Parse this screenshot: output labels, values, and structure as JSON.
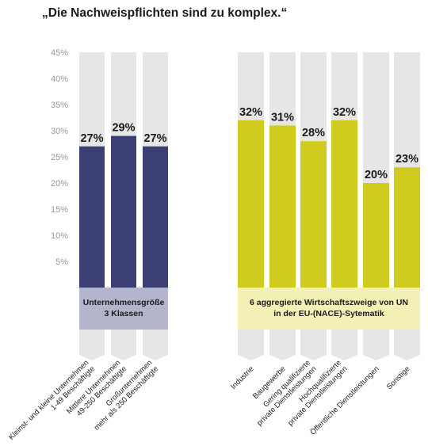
{
  "title": "„Die Nachweispflichten sind zu komplex.“",
  "chart_data": {
    "type": "bar",
    "y_ticks": [
      "45%",
      "40%",
      "35%",
      "30%",
      "25%",
      "20%",
      "15%",
      "10%",
      "5%"
    ],
    "ylim": [
      0,
      45
    ],
    "grid": false,
    "groups": [
      {
        "label_lines": [
          "Unternehmensgröße",
          "3 Klassen"
        ],
        "bar_color": "#3b3f73",
        "band_color": "#b3b5cc",
        "categories": [
          {
            "lines": [
              "Kleinst- und kleine Unternehmen",
              "1-49 Beschäftigte"
            ],
            "value": 27,
            "label": "27%"
          },
          {
            "lines": [
              "Mittlere Unternehmen",
              "49-250 Beschäftigte"
            ],
            "value": 29,
            "label": "29%"
          },
          {
            "lines": [
              "Großunternehmen",
              "mehr als 250 Beschäftigte"
            ],
            "value": 27,
            "label": "27%"
          }
        ]
      },
      {
        "label_lines": [
          "6 aggregierte Wirtschaftszweige von UN",
          "in der EU-(NACE)-Sytematik"
        ],
        "bar_color": "#cfcc1f",
        "band_color": "#f2f0b5",
        "categories": [
          {
            "lines": [
              "Industrie"
            ],
            "value": 32,
            "label": "32%"
          },
          {
            "lines": [
              "Baugewerbe"
            ],
            "value": 31,
            "label": "31%"
          },
          {
            "lines": [
              "Gering qualifizierte",
              "private Dienstleistungen"
            ],
            "value": 28,
            "label": "28%"
          },
          {
            "lines": [
              "Hochqualifizierte",
              "private Dienstleistungen"
            ],
            "value": 32,
            "label": "32%"
          },
          {
            "lines": [
              "Öffentliche Dienstleistungen"
            ],
            "value": 20,
            "label": "20%"
          },
          {
            "lines": [
              "Sonstige"
            ],
            "value": 23,
            "label": "23%"
          }
        ]
      }
    ]
  }
}
